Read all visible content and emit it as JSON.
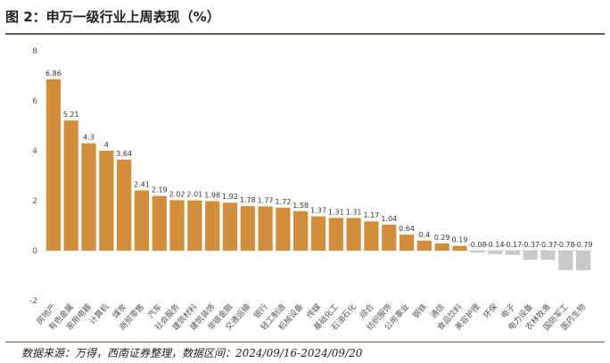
{
  "figure": {
    "title": "图 2：申万一级行业上周表现（%）",
    "source": "数据来源：万得，西南证券整理，数据区间：2024/09/16-2024/09/20"
  },
  "colors": {
    "positive_bar": "#D38E3C",
    "negative_bar": "#C9C9C9",
    "axis_text": "#555555",
    "rule": "#6b5a4a"
  },
  "chart_data": {
    "type": "bar",
    "title": "申万一级行业上周表现（%）",
    "xlabel": "",
    "ylabel": "",
    "ylim": [
      -2,
      8
    ],
    "yticks": [
      -2,
      0,
      2,
      4,
      6,
      8
    ],
    "grid": false,
    "legend": "none",
    "categories": [
      "房地产",
      "有色金属",
      "家用电器",
      "计算机",
      "煤炭",
      "商贸零售",
      "汽车",
      "社会服务",
      "建筑材料",
      "建筑装饰",
      "非银金融",
      "交通运输",
      "银行",
      "轻工制造",
      "机械设备",
      "传媒",
      "基础化工",
      "石油石化",
      "综合",
      "纺织服饰",
      "公用事业",
      "钢铁",
      "通信",
      "食品饮料",
      "美容护理",
      "环保",
      "电子",
      "电力设备",
      "农林牧渔",
      "国防军工",
      "医药生物"
    ],
    "values": [
      6.86,
      5.21,
      4.3,
      4,
      3.64,
      2.41,
      2.19,
      2.02,
      2.01,
      1.98,
      1.92,
      1.78,
      1.77,
      1.72,
      1.58,
      1.37,
      1.31,
      1.31,
      1.17,
      1.04,
      0.64,
      0.4,
      0.29,
      0.19,
      -0.08,
      -0.14,
      -0.17,
      -0.37,
      -0.37,
      -0.78,
      -0.79
    ],
    "value_labels": [
      "6.86",
      "5.21",
      "4.3",
      "4",
      "3.64",
      "2.41",
      "2.19",
      "2.02",
      "2.01",
      "1.98",
      "1.92",
      "1.78",
      "1.77",
      "1.72",
      "1.58",
      "1.37",
      "1.31",
      "1.31",
      "1.17",
      "1.04",
      "0.64",
      "0.4",
      "0.29",
      "0.19",
      "-0.08",
      "-0.14",
      "-0.17",
      "-0.37",
      "-0.37",
      "-0.78",
      "-0.79"
    ]
  }
}
